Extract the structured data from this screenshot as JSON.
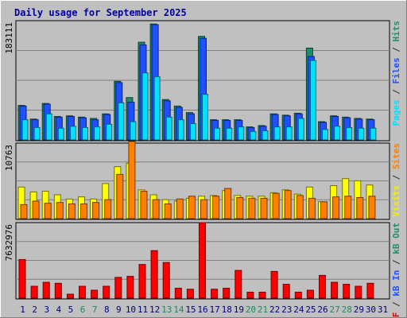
{
  "chart_data": [
    {
      "type": "bar",
      "title": "Daily usage for September 2025",
      "ymax_label": "183111",
      "right_axis_parts": [
        {
          "text": "Pages",
          "color": "#00e0ff"
        },
        {
          "text": " / ",
          "color": "#303030"
        },
        {
          "text": "Files",
          "color": "#2050ff"
        },
        {
          "text": " / ",
          "color": "#303030"
        },
        {
          "text": "Hits",
          "color": "#20906a"
        }
      ],
      "categories": [
        "1",
        "2",
        "3",
        "4",
        "5",
        "6",
        "7",
        "8",
        "9",
        "10",
        "11",
        "12",
        "13",
        "14",
        "15",
        "16",
        "17",
        "18",
        "19",
        "20",
        "21",
        "22",
        "23",
        "24",
        "25",
        "26",
        "27",
        "28",
        "29",
        "30",
        "31"
      ],
      "weekend_color": "#208860",
      "weekday_color": "#000080",
      "weekend_days": [
        "6",
        "7",
        "13",
        "14",
        "20",
        "21",
        "27",
        "28"
      ],
      "ylim": [
        0,
        183111
      ],
      "series": [
        {
          "name": "Hits",
          "color": "#208c6c",
          "values": [
            53000,
            32000,
            56000,
            36000,
            37000,
            35000,
            33000,
            40000,
            90000,
            65000,
            150000,
            178000,
            62000,
            52000,
            42000,
            159000,
            31000,
            31000,
            31000,
            20000,
            22000,
            40000,
            38000,
            41000,
            141000,
            28000,
            37000,
            35000,
            33000,
            32000,
            0
          ]
        },
        {
          "name": "Files",
          "color": "#1e50ff",
          "values": [
            52000,
            31000,
            55000,
            35000,
            36000,
            34000,
            31000,
            39000,
            88000,
            58000,
            146000,
            177000,
            60000,
            50000,
            40000,
            156000,
            30000,
            30000,
            30000,
            19000,
            21000,
            39000,
            37000,
            40000,
            128000,
            27000,
            36000,
            34000,
            32000,
            31000,
            0
          ]
        },
        {
          "name": "Pages",
          "color": "#00e0ff",
          "values": [
            31000,
            19000,
            40000,
            18000,
            21000,
            19000,
            20000,
            24000,
            57000,
            28000,
            103000,
            97000,
            35000,
            31000,
            25000,
            70000,
            18000,
            18000,
            20000,
            13000,
            14000,
            20000,
            20000,
            33000,
            122000,
            16000,
            21000,
            19000,
            18000,
            18000,
            0
          ]
        }
      ]
    },
    {
      "type": "bar",
      "ymax_label": "10763",
      "right_axis_parts": [
        {
          "text": "Visits",
          "color": "#f0f000"
        },
        {
          "text": " / ",
          "color": "#303030"
        },
        {
          "text": "Sites",
          "color": "#ff8000"
        }
      ],
      "ylim": [
        0,
        10763
      ],
      "series": [
        {
          "name": "Visits",
          "color": "#ffff00",
          "values": [
            4500,
            3800,
            3900,
            3400,
            2800,
            3100,
            2800,
            5000,
            7400,
            7900,
            4100,
            3400,
            2700,
            2500,
            2900,
            3200,
            3300,
            4000,
            3300,
            3200,
            3200,
            3700,
            4100,
            3500,
            4500,
            2400,
            4700,
            5700,
            5400,
            4800,
            0
          ]
        },
        {
          "name": "Sites",
          "color": "#ff8000",
          "values": [
            2000,
            2500,
            2200,
            2300,
            2100,
            2100,
            2300,
            2700,
            6300,
            11000,
            3900,
            2700,
            2100,
            2800,
            3200,
            2700,
            3200,
            4300,
            3000,
            2900,
            2900,
            3600,
            4000,
            3300,
            2900,
            2400,
            3100,
            3200,
            3000,
            3200,
            0
          ]
        }
      ]
    },
    {
      "type": "bar",
      "ymax_label": "7632976",
      "right_axis_parts": [
        {
          "text": "kB F",
          "color": "#e00000"
        },
        {
          "text": " / ",
          "color": "#303030"
        },
        {
          "text": "kB In",
          "color": "#2050ff"
        },
        {
          "text": " / ",
          "color": "#303030"
        },
        {
          "text": "kB Out",
          "color": "#20906a"
        }
      ],
      "ylim": [
        0,
        7632976
      ],
      "series": [
        {
          "name": "kB F",
          "color": "#ff0000",
          "values": [
            3900000,
            1200000,
            1600000,
            1500000,
            400000,
            1200000,
            800000,
            1200000,
            2100000,
            2200000,
            3400000,
            4800000,
            3600000,
            1000000,
            900000,
            7632976,
            900000,
            1000000,
            2800000,
            600000,
            600000,
            2700000,
            1400000,
            600000,
            800000,
            2300000,
            1600000,
            1400000,
            1200000,
            1500000,
            0
          ]
        }
      ]
    }
  ]
}
